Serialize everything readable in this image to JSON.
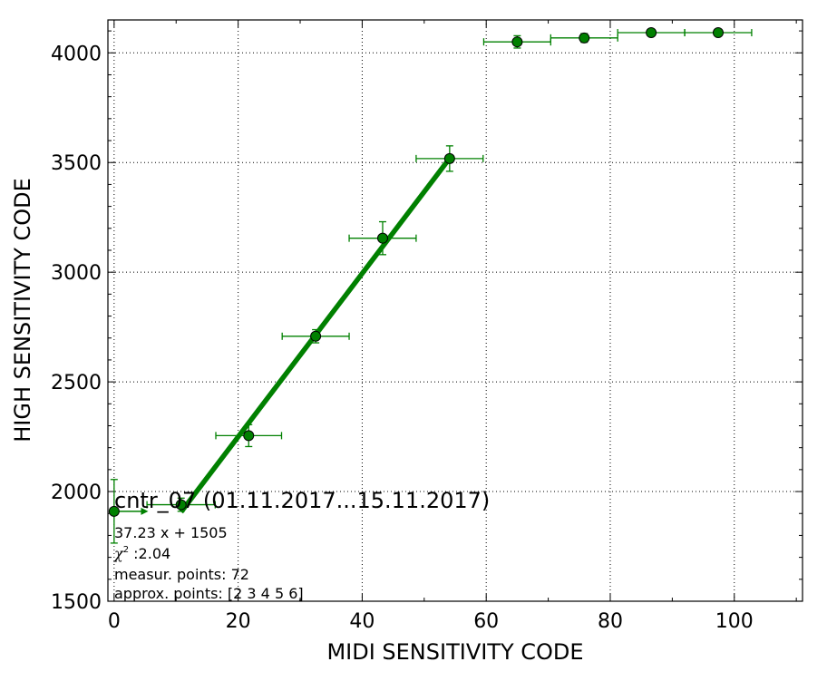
{
  "chart_data": {
    "type": "scatter",
    "xlabel": "MIDI SENSITIVITY CODE",
    "ylabel": "HIGH SENSITIVITY CODE",
    "xlim": [
      -1,
      111
    ],
    "ylim": [
      1500,
      4150
    ],
    "x_ticks": [
      0,
      20,
      40,
      60,
      80,
      100
    ],
    "y_ticks": [
      1500,
      2000,
      2500,
      3000,
      3500,
      4000
    ],
    "grid": true,
    "colors": {
      "series": "#008000",
      "marker_edge": "#000000"
    },
    "series": [
      {
        "points": [
          {
            "x": 0,
            "y": 1910,
            "xerr": 0,
            "yerr": 145
          },
          {
            "x": 10.8,
            "y": 1940,
            "xerr": 5.5,
            "yerr": 30
          },
          {
            "x": 21.7,
            "y": 2255,
            "xerr": 5.3,
            "yerr": 50
          },
          {
            "x": 32.5,
            "y": 2708,
            "xerr": 5.4,
            "yerr": 30
          },
          {
            "x": 43.3,
            "y": 3155,
            "xerr": 5.4,
            "yerr": 75
          },
          {
            "x": 54.1,
            "y": 3518,
            "xerr": 5.4,
            "yerr": 58
          },
          {
            "x": 65.0,
            "y": 4050,
            "xerr": 5.4,
            "yerr": 28
          },
          {
            "x": 75.8,
            "y": 4068,
            "xerr": 5.4,
            "yerr": 20
          },
          {
            "x": 86.6,
            "y": 4092,
            "xerr": 5.4,
            "yerr": 12
          },
          {
            "x": 97.4,
            "y": 4092,
            "xerr": 5.4,
            "yerr": 12
          }
        ]
      }
    ],
    "fit_line": {
      "slope": 37.23,
      "intercept": 1505,
      "x_range": [
        10.8,
        54.1
      ]
    },
    "arrow": {
      "from": [
        0,
        1910
      ],
      "to": [
        5.5,
        1910
      ]
    }
  },
  "annotations": {
    "title": "cntr_07 (01.11.2017...15.11.2017)",
    "equation": "37.23 x + 1505",
    "chi2_symbol": "χ",
    "chi2_exp": "2",
    "chi2_value": " :2.04",
    "measur_points": "measur. points: 72",
    "approx_points": "approx. points: [2 3 4 5 6]"
  }
}
